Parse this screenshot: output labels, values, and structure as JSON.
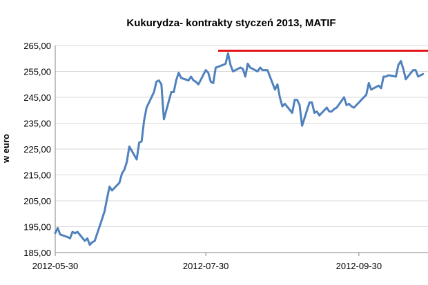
{
  "chart_data": {
    "type": "line",
    "title": "Kukurydza- kontrakty styczeń 2013, MATIF",
    "ylabel": "w euro",
    "ylim": [
      185,
      265
    ],
    "yticks": [
      "185,00",
      "195,00",
      "205,00",
      "215,00",
      "225,00",
      "235,00",
      "245,00",
      "255,00",
      "265,00"
    ],
    "ytick_values": [
      185,
      195,
      205,
      215,
      225,
      235,
      245,
      255,
      265
    ],
    "xlim": [
      "2012-05-30",
      "2012-10-28"
    ],
    "xticks": [
      "2012-05-30",
      "2012-07-30",
      "2012-09-30"
    ],
    "grid": "horizontal",
    "legend": "none",
    "series": [
      {
        "color": "#4f81bd",
        "x": [
          "2012-05-30",
          "2012-05-31",
          "2012-06-01",
          "2012-06-04",
          "2012-06-05",
          "2012-06-06",
          "2012-06-07",
          "2012-06-08",
          "2012-06-11",
          "2012-06-12",
          "2012-06-13",
          "2012-06-14",
          "2012-06-15",
          "2012-06-18",
          "2012-06-19",
          "2012-06-20",
          "2012-06-21",
          "2012-06-22",
          "2012-06-25",
          "2012-06-26",
          "2012-06-27",
          "2012-06-28",
          "2012-06-29",
          "2012-07-02",
          "2012-07-03",
          "2012-07-04",
          "2012-07-05",
          "2012-07-06",
          "2012-07-09",
          "2012-07-10",
          "2012-07-11",
          "2012-07-12",
          "2012-07-13",
          "2012-07-16",
          "2012-07-17",
          "2012-07-18",
          "2012-07-19",
          "2012-07-20",
          "2012-07-23",
          "2012-07-24",
          "2012-07-25",
          "2012-07-26",
          "2012-07-27",
          "2012-07-30",
          "2012-07-31",
          "2012-08-01",
          "2012-08-02",
          "2012-08-03",
          "2012-08-06",
          "2012-08-07",
          "2012-08-08",
          "2012-08-09",
          "2012-08-10",
          "2012-08-13",
          "2012-08-14",
          "2012-08-15",
          "2012-08-16",
          "2012-08-17",
          "2012-08-20",
          "2012-08-21",
          "2012-08-22",
          "2012-08-23",
          "2012-08-24",
          "2012-08-27",
          "2012-08-28",
          "2012-08-29",
          "2012-08-30",
          "2012-08-31",
          "2012-09-03",
          "2012-09-04",
          "2012-09-05",
          "2012-09-06",
          "2012-09-07",
          "2012-09-10",
          "2012-09-11",
          "2012-09-12",
          "2012-09-13",
          "2012-09-14",
          "2012-09-17",
          "2012-09-18",
          "2012-09-19",
          "2012-09-20",
          "2012-09-21",
          "2012-09-24",
          "2012-09-25",
          "2012-09-26",
          "2012-09-27",
          "2012-09-28",
          "2012-10-01",
          "2012-10-02",
          "2012-10-03",
          "2012-10-04",
          "2012-10-05",
          "2012-10-08",
          "2012-10-09",
          "2012-10-10",
          "2012-10-11",
          "2012-10-12",
          "2012-10-15",
          "2012-10-16",
          "2012-10-17",
          "2012-10-18",
          "2012-10-19",
          "2012-10-22",
          "2012-10-23",
          "2012-10-24",
          "2012-10-25",
          "2012-10-26"
        ],
        "y": [
          192.5,
          194.5,
          192.0,
          191.0,
          190.5,
          193.0,
          192.5,
          193.0,
          189.5,
          190.5,
          188.0,
          189.0,
          189.5,
          198.0,
          201.0,
          206.0,
          210.5,
          209.0,
          212.0,
          215.5,
          217.0,
          220.0,
          226.0,
          221.0,
          227.5,
          228.0,
          236.0,
          241.0,
          247.0,
          251.0,
          251.5,
          250.0,
          236.5,
          247.0,
          247.0,
          251.5,
          254.5,
          252.5,
          251.5,
          253.0,
          251.5,
          251.0,
          250.0,
          255.5,
          254.5,
          251.0,
          250.5,
          256.5,
          257.5,
          258.0,
          262.0,
          257.5,
          255.0,
          256.5,
          256.0,
          253.0,
          258.0,
          256.5,
          255.0,
          256.5,
          255.5,
          255.5,
          255.5,
          248.0,
          250.0,
          245.0,
          241.5,
          242.5,
          239.0,
          244.0,
          244.0,
          242.0,
          234.0,
          243.0,
          243.0,
          239.0,
          239.5,
          238.0,
          241.0,
          239.5,
          239.5,
          240.5,
          241.0,
          245.0,
          242.0,
          242.5,
          241.5,
          241.0,
          244.0,
          245.0,
          246.0,
          250.5,
          248.0,
          249.5,
          248.5,
          253.0,
          253.0,
          253.5,
          253.0,
          257.5,
          259.0,
          256.0,
          252.0,
          255.5,
          255.5,
          253.0,
          253.5,
          254.0
        ]
      }
    ],
    "annotations": [
      {
        "type": "hline",
        "y": 263.0,
        "x_start": "2012-08-04",
        "x_end": "2012-10-28",
        "color": "#e3141b"
      }
    ]
  }
}
